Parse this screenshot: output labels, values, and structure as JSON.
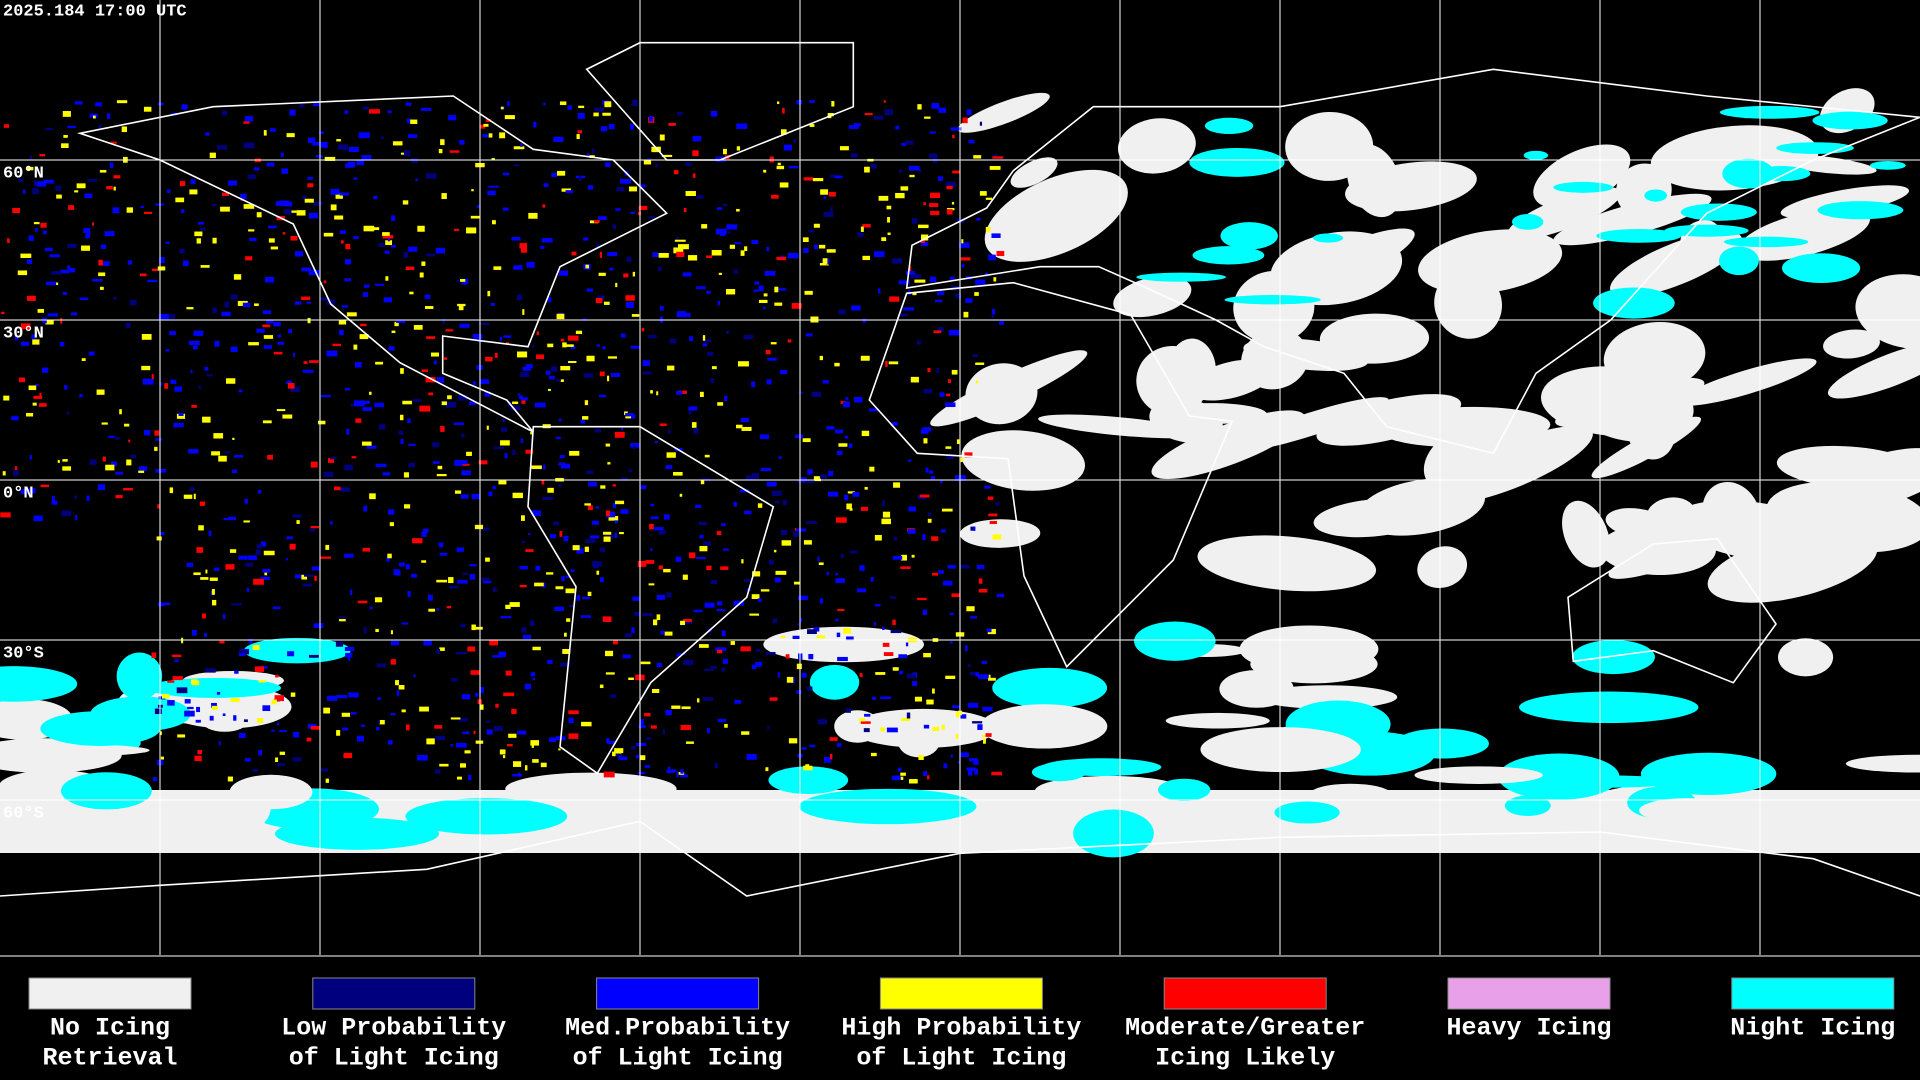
{
  "header": {
    "timestamp": "2025.184 17:00 UTC"
  },
  "map": {
    "latitude_labels": [
      "60°N",
      "30°N",
      "0°N",
      "30°S",
      "60°S"
    ]
  },
  "legend": {
    "items": [
      {
        "color": "#f0f0f0",
        "lines": [
          "No Icing",
          "Retrieval"
        ]
      },
      {
        "color": "#00007f",
        "lines": [
          "Low Probability",
          "of Light Icing"
        ]
      },
      {
        "color": "#0000ff",
        "lines": [
          "Med.Probability",
          "of Light Icing"
        ]
      },
      {
        "color": "#ffff00",
        "lines": [
          "High Probability",
          "of Light Icing"
        ]
      },
      {
        "color": "#ff0000",
        "lines": [
          "Moderate/Greater",
          "Icing Likely"
        ]
      },
      {
        "color": "#e8a0e8",
        "lines": [
          "Heavy Icing"
        ]
      },
      {
        "color": "#00ffff",
        "lines": [
          "Night Icing"
        ]
      }
    ]
  }
}
